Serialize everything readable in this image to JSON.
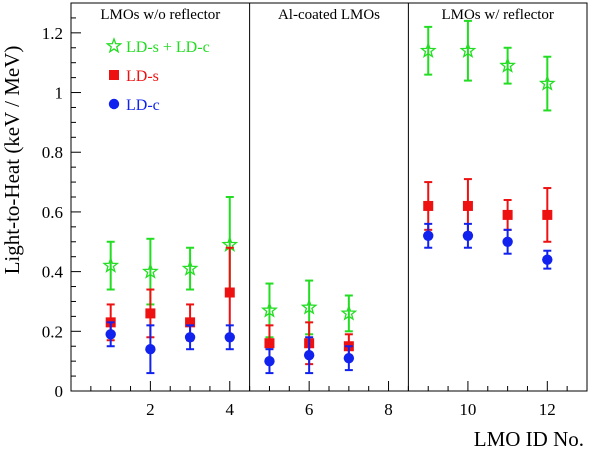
{
  "chart_data": {
    "type": "scatter",
    "xlabel": "LMO ID No.",
    "ylabel": "Light-to-Heat (keV / MeV)",
    "xlim": [
      0,
      13
    ],
    "ylim": [
      0,
      1.3
    ],
    "x_ticks": [
      2,
      4,
      6,
      8,
      10,
      12
    ],
    "y_ticks": [
      0,
      0.2,
      0.4,
      0.6,
      0.8,
      1,
      1.2
    ],
    "grid": false,
    "legend_position": "top-left",
    "sections": [
      {
        "label": "LMOs w/o reflector",
        "x_range": [
          0,
          4.5
        ]
      },
      {
        "label": "Al-coated LMOs",
        "x_range": [
          4.5,
          8.5
        ]
      },
      {
        "label": "LMOs w/ reflector",
        "x_range": [
          8.5,
          13
        ]
      }
    ],
    "series": [
      {
        "name": "LD-s + LD-c",
        "color": "#22dd22",
        "marker": "star-open",
        "points": [
          {
            "x": 1,
            "y": 0.42,
            "err": 0.08
          },
          {
            "x": 2,
            "y": 0.4,
            "err": 0.11
          },
          {
            "x": 3,
            "y": 0.41,
            "err": 0.07
          },
          {
            "x": 4,
            "y": 0.49,
            "err": 0.16
          },
          {
            "x": 5,
            "y": 0.27,
            "err": 0.09
          },
          {
            "x": 6,
            "y": 0.28,
            "err": 0.09
          },
          {
            "x": 7,
            "y": 0.26,
            "err": 0.06
          },
          {
            "x": 9,
            "y": 1.14,
            "err": 0.08
          },
          {
            "x": 10,
            "y": 1.14,
            "err": 0.1
          },
          {
            "x": 11,
            "y": 1.09,
            "err": 0.06
          },
          {
            "x": 12,
            "y": 1.03,
            "err": 0.09
          }
        ]
      },
      {
        "name": "LD-s",
        "color": "#ee1111",
        "marker": "square",
        "points": [
          {
            "x": 1,
            "y": 0.23,
            "err": 0.06
          },
          {
            "x": 2,
            "y": 0.26,
            "err": 0.08
          },
          {
            "x": 3,
            "y": 0.23,
            "err": 0.06
          },
          {
            "x": 4,
            "y": 0.33,
            "err": 0.15
          },
          {
            "x": 5,
            "y": 0.16,
            "err": 0.06
          },
          {
            "x": 6,
            "y": 0.16,
            "err": 0.07
          },
          {
            "x": 7,
            "y": 0.15,
            "err": 0.04
          },
          {
            "x": 9,
            "y": 0.62,
            "err": 0.08
          },
          {
            "x": 10,
            "y": 0.62,
            "err": 0.09
          },
          {
            "x": 11,
            "y": 0.59,
            "err": 0.05
          },
          {
            "x": 12,
            "y": 0.59,
            "err": 0.09
          }
        ]
      },
      {
        "name": "LD-c",
        "color": "#1122ee",
        "marker": "circle",
        "points": [
          {
            "x": 1,
            "y": 0.19,
            "err": 0.04
          },
          {
            "x": 2,
            "y": 0.14,
            "err": 0.08
          },
          {
            "x": 3,
            "y": 0.18,
            "err": 0.04
          },
          {
            "x": 4,
            "y": 0.18,
            "err": 0.04
          },
          {
            "x": 5,
            "y": 0.1,
            "err": 0.04
          },
          {
            "x": 6,
            "y": 0.12,
            "err": 0.06
          },
          {
            "x": 7,
            "y": 0.11,
            "err": 0.04
          },
          {
            "x": 9,
            "y": 0.52,
            "err": 0.04
          },
          {
            "x": 10,
            "y": 0.52,
            "err": 0.04
          },
          {
            "x": 11,
            "y": 0.5,
            "err": 0.04
          },
          {
            "x": 12,
            "y": 0.44,
            "err": 0.03
          }
        ]
      }
    ]
  }
}
